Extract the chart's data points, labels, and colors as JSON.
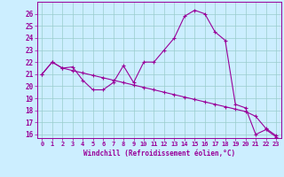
{
  "xlabel": "Windchill (Refroidissement éolien,°C)",
  "background_color": "#cceeff",
  "line_color": "#990099",
  "grid_color": "#99cccc",
  "xlim": [
    -0.5,
    23.5
  ],
  "ylim": [
    15.7,
    27.0
  ],
  "yticks": [
    16,
    17,
    18,
    19,
    20,
    21,
    22,
    23,
    24,
    25,
    26
  ],
  "xticks": [
    0,
    1,
    2,
    3,
    4,
    5,
    6,
    7,
    8,
    9,
    10,
    11,
    12,
    13,
    14,
    15,
    16,
    17,
    18,
    19,
    20,
    21,
    22,
    23
  ],
  "series1_x": [
    0,
    1,
    2,
    3,
    4,
    5,
    6,
    7,
    8,
    9,
    10,
    11,
    12,
    13,
    14,
    15,
    16,
    17,
    18,
    19,
    20,
    21,
    22,
    23
  ],
  "series1_y": [
    21.0,
    22.0,
    21.5,
    21.6,
    20.5,
    19.7,
    19.7,
    20.3,
    21.7,
    20.3,
    22.0,
    22.0,
    23.0,
    24.0,
    25.8,
    26.3,
    26.0,
    24.5,
    23.8,
    18.5,
    18.2,
    16.0,
    16.4,
    15.8
  ],
  "series2_x": [
    0,
    1,
    2,
    3,
    4,
    5,
    6,
    7,
    8,
    9,
    10,
    11,
    12,
    13,
    14,
    15,
    16,
    17,
    18,
    19,
    20,
    21,
    22,
    23
  ],
  "series2_y": [
    21.0,
    22.0,
    21.5,
    21.3,
    21.1,
    20.9,
    20.7,
    20.5,
    20.3,
    20.1,
    19.9,
    19.7,
    19.5,
    19.3,
    19.1,
    18.9,
    18.7,
    18.5,
    18.3,
    18.1,
    17.9,
    17.5,
    16.5,
    15.9
  ]
}
